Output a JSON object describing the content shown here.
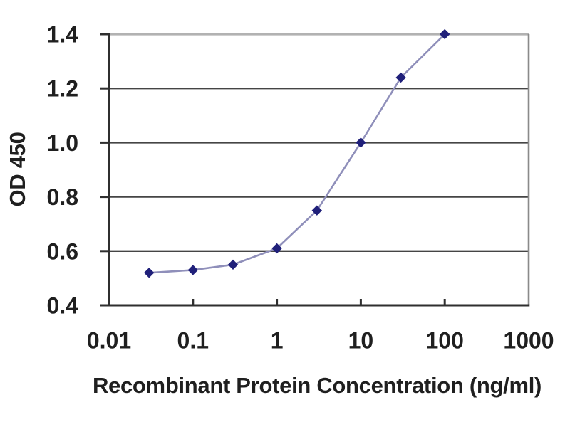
{
  "chart_data": {
    "type": "line",
    "title": "",
    "xlabel": "Recombinant Protein Concentration (ng/ml)",
    "ylabel": "OD 450",
    "x_scale": "log",
    "xlim": [
      0.01,
      1000
    ],
    "ylim": [
      0.4,
      1.4
    ],
    "x_ticks": [
      0.01,
      0.1,
      1,
      10,
      100,
      1000
    ],
    "x_tick_labels": [
      "0.01",
      "0.1",
      "1",
      "10",
      "100",
      "1000"
    ],
    "y_ticks": [
      0.4,
      0.6,
      0.8,
      1.0,
      1.2,
      1.4
    ],
    "y_tick_labels": [
      "0.4",
      "0.6",
      "0.8",
      "1.0",
      "1.2",
      "1.4"
    ],
    "grid": true,
    "legend": "none",
    "x": [
      0.03,
      0.1,
      0.3,
      1,
      3,
      10,
      30,
      100
    ],
    "series": [
      {
        "name": "OD 450",
        "marker": "diamond",
        "values": [
          0.52,
          0.53,
          0.55,
          0.61,
          0.75,
          1.0,
          1.24,
          1.4
        ]
      }
    ],
    "colors": {
      "marker": "#20207a",
      "line": "#8f8fba",
      "grid": "#454545",
      "grid_top": "#b2b2b2",
      "axis": "#2f2f2f",
      "right_border": "#8a8a8a",
      "text": "#1f1f1f"
    }
  }
}
